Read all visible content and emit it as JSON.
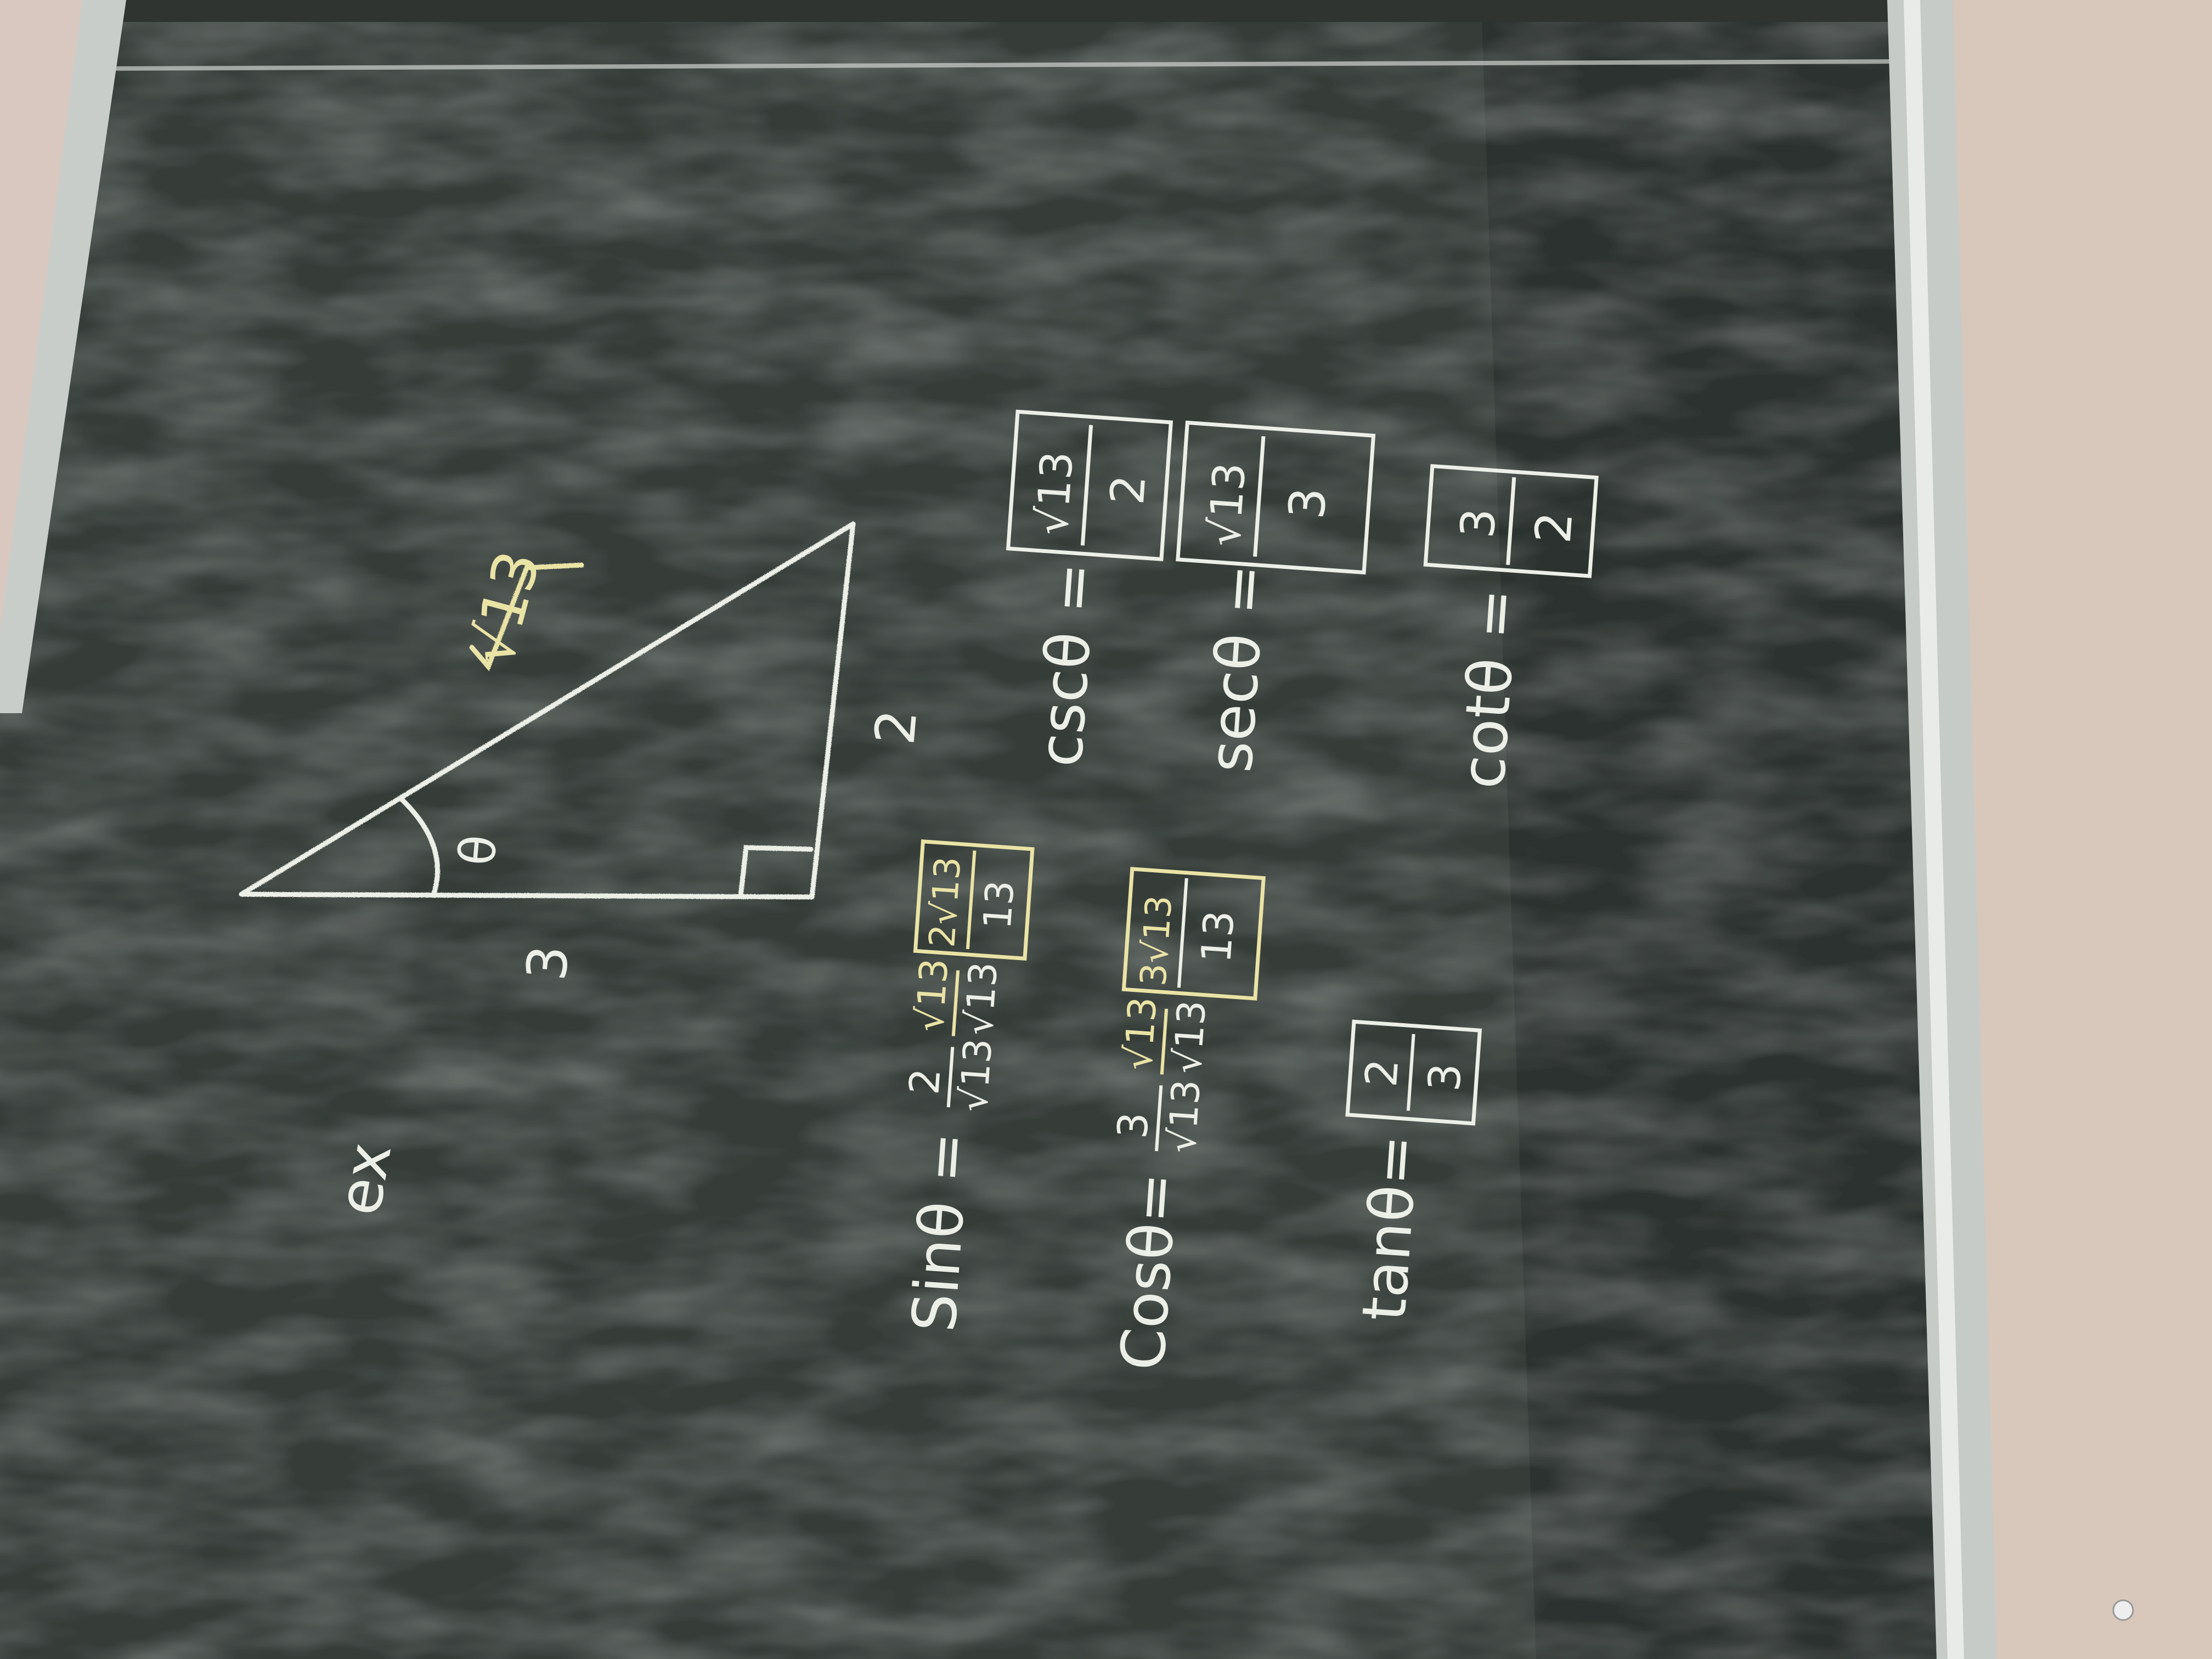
{
  "colors": {
    "board": "#363d39",
    "board_dark": "#262b28",
    "chalk_white": "#ecefe8",
    "chalk_yellow": "#e9e3a6",
    "wall": "#d8c7bb",
    "frame": "#c7cbc8"
  },
  "triangle": {
    "hypotenuse": "√13",
    "opposite": "2",
    "adjacent": "3",
    "angle": "θ"
  },
  "example_label": "ex",
  "sin": {
    "lhs": "Sinθ =",
    "num1": "2",
    "den1": "√13",
    "num2": "√13",
    "den2": "√13",
    "ans_num": "2√13",
    "ans_den": "13"
  },
  "cos": {
    "lhs": "Cosθ=",
    "num1": "3",
    "den1": "√13",
    "num2": "√13",
    "den2": "√13",
    "ans_num": "3√13",
    "ans_den": "13"
  },
  "tan": {
    "lhs": "tanθ=",
    "ans_num": "2",
    "ans_den": "3"
  },
  "csc": {
    "lhs": "cscθ =",
    "ans_num": "√13",
    "ans_den": "2"
  },
  "sec": {
    "lhs": "secθ =",
    "ans_num": "√13",
    "ans_den": "3"
  },
  "cot": {
    "lhs": "cotθ =",
    "ans_num": "3",
    "ans_den": "2"
  }
}
